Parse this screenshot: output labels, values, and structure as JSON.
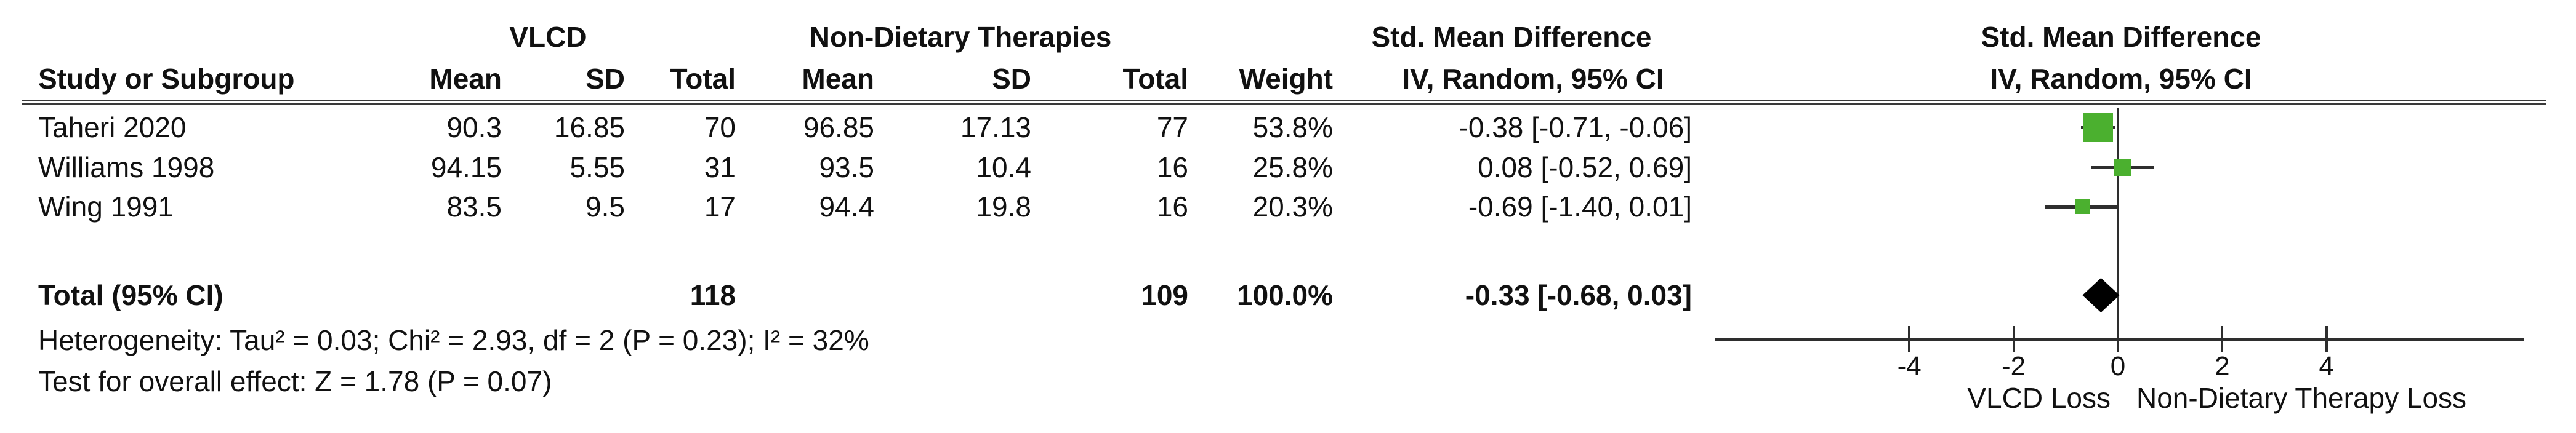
{
  "table": {
    "group_headers": {
      "vlcd": "VLCD",
      "non_dietary": "Non-Dietary Therapies",
      "smd_left": "Std. Mean Difference",
      "smd_right": "Std. Mean Difference"
    },
    "column_headers": {
      "study": "Study or Subgroup",
      "mean1": "Mean",
      "sd1": "SD",
      "total1": "Total",
      "mean2": "Mean",
      "sd2": "SD",
      "total2": "Total",
      "weight": "Weight",
      "iv_left": "IV, Random, 95% CI",
      "iv_right": "IV, Random, 95% CI"
    },
    "rows": [
      {
        "study": "Taheri 2020",
        "mean1": "90.3",
        "sd1": "16.85",
        "total1": "70",
        "mean2": "96.85",
        "sd2": "17.13",
        "total2": "77",
        "weight": "53.8%",
        "ci": "-0.38 [-0.71, -0.06]"
      },
      {
        "study": "Williams 1998",
        "mean1": "94.15",
        "sd1": "5.55",
        "total1": "31",
        "mean2": "93.5",
        "sd2": "10.4",
        "total2": "16",
        "weight": "25.8%",
        "ci": "0.08 [-0.52, 0.69]"
      },
      {
        "study": "Wing 1991",
        "mean1": "83.5",
        "sd1": "9.5",
        "total1": "17",
        "mean2": "94.4",
        "sd2": "19.8",
        "total2": "16",
        "weight": "20.3%",
        "ci": "-0.69 [-1.40, 0.01]"
      }
    ],
    "total_row": {
      "label": "Total (95% CI)",
      "total1": "118",
      "total2": "109",
      "weight": "100.0%",
      "ci": "-0.33 [-0.68, 0.03]"
    },
    "footnotes": {
      "heterogeneity": "Heterogeneity: Tau² = 0.03; Chi² = 2.93, df = 2 (P = 0.23); I² = 32%",
      "overall_effect": "Test for overall effect: Z = 1.78 (P = 0.07)"
    }
  },
  "chart_data": {
    "type": "forest",
    "effect_measure": "Std. Mean Difference, IV, Random, 95% CI",
    "x_ticks": [
      -4,
      -2,
      0,
      2,
      4
    ],
    "xlim": [
      -4.8,
      4.8
    ],
    "axis_caption_left": "VLCD Loss",
    "axis_caption_right": "Non-Dietary Therapy Loss",
    "studies": [
      {
        "name": "Taheri 2020",
        "smd": -0.38,
        "ci_low": -0.71,
        "ci_high": -0.06,
        "weight_pct": 53.8
      },
      {
        "name": "Williams 1998",
        "smd": 0.08,
        "ci_low": -0.52,
        "ci_high": 0.69,
        "weight_pct": 25.8
      },
      {
        "name": "Wing 1991",
        "smd": -0.69,
        "ci_low": -1.4,
        "ci_high": 0.01,
        "weight_pct": 20.3
      }
    ],
    "total": {
      "name": "Total (95% CI)",
      "smd": -0.33,
      "ci_low": -0.68,
      "ci_high": 0.03,
      "weight_pct": 100.0
    },
    "colors": {
      "marker_green": "#4bb02f",
      "diamond": "#000000",
      "lines": "#2e2e2e"
    }
  }
}
